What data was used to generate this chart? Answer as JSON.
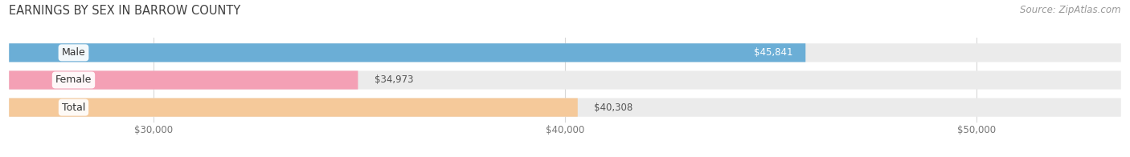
{
  "title": "EARNINGS BY SEX IN BARROW COUNTY",
  "source": "Source: ZipAtlas.com",
  "categories": [
    "Male",
    "Female",
    "Total"
  ],
  "values": [
    45841,
    34973,
    40308
  ],
  "bar_colors": [
    "#6baed6",
    "#f4a0b5",
    "#f5c99a"
  ],
  "track_color": "#ebebeb",
  "xmin": 26500,
  "xmax": 53500,
  "xticks": [
    30000,
    40000,
    50000
  ],
  "xtick_labels": [
    "$30,000",
    "$40,000",
    "$50,000"
  ],
  "bar_height": 0.68,
  "male_label_inside": true,
  "female_label_inside": false,
  "total_label_inside": false,
  "bg_color": "#ffffff",
  "title_color": "#404040",
  "title_fontsize": 10.5,
  "source_fontsize": 8.5,
  "tick_fontsize": 8.5,
  "bar_label_fontsize": 8.5,
  "category_fontsize": 9,
  "grid_color": "#d8d8d8",
  "tick_color": "#777777",
  "dark_label_color": "#555555",
  "white_label_color": "#ffffff"
}
